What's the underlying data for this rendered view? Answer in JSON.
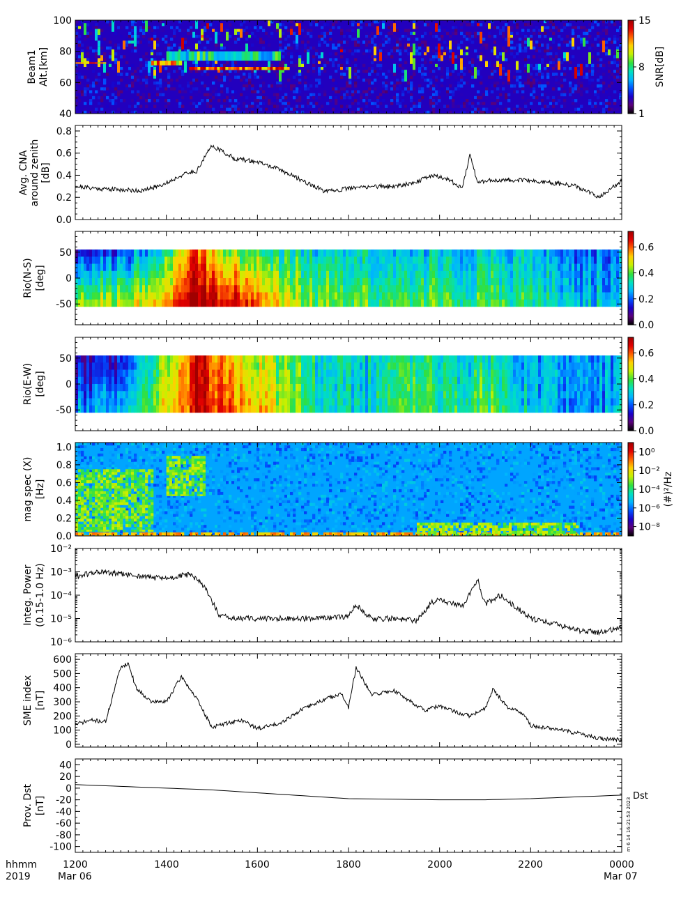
{
  "footer": {
    "row1": [
      "hhmm",
      "1200",
      "1400",
      "1600",
      "1800",
      "2000",
      "2200",
      "0000"
    ],
    "row2": [
      "2019",
      "Mar 06",
      "Mar 07"
    ],
    "stamp": "m  6 14 16:21:53 2023"
  },
  "x_axis": {
    "range": [
      "1200",
      "0000"
    ],
    "tick_labels": [
      "1200",
      "1400",
      "1600",
      "1800",
      "2000",
      "2200",
      "0000"
    ]
  },
  "colorscale": [
    "#000000",
    "#5a007a",
    "#1a00c8",
    "#0050ff",
    "#00b4ff",
    "#00e0c0",
    "#30e040",
    "#c8f000",
    "#ffd000",
    "#ff6000",
    "#e00000",
    "#a00000"
  ],
  "chart_data": [
    {
      "type": "heatmap",
      "ylabel": [
        "Beam1",
        "Alt.[km]"
      ],
      "ylim": [
        40,
        100
      ],
      "yticks": [
        "40",
        "60",
        "80",
        "100"
      ],
      "colorbar": {
        "label": "SNR[dB]",
        "ticks": [
          "1",
          "8",
          "15"
        ],
        "range": [
          1,
          15
        ]
      },
      "features": [
        {
          "what": "echo layer",
          "time": [
            "1430",
            "1640"
          ],
          "altitude_km": [
            68,
            70
          ],
          "snr_db": 15
        },
        {
          "what": "echo layer",
          "time": [
            "1340",
            "1420"
          ],
          "altitude_km": [
            71,
            74
          ],
          "snr_db": 14
        },
        {
          "what": "echo layer",
          "time": [
            "1200",
            "1240"
          ],
          "altitude_km": [
            72,
            73
          ],
          "snr_db": 14
        },
        {
          "what": "echo layer",
          "time": [
            "1400",
            "1630"
          ],
          "altitude_km": [
            74,
            80
          ],
          "snr_db": 10
        }
      ]
    },
    {
      "type": "line",
      "ylabel": [
        "Avg. CNA",
        "around zenith",
        "[dB]"
      ],
      "ylim": [
        0,
        0.85
      ],
      "yticks": [
        "0.0",
        "0.2",
        "0.4",
        "0.6",
        "0.8"
      ],
      "series": [
        {
          "x": [
            "1200",
            "1230",
            "1300",
            "1330",
            "1400",
            "1420",
            "1440",
            "1500",
            "1530",
            "1600",
            "1630",
            "1700",
            "1730",
            "1800",
            "1830",
            "1900",
            "1930",
            "1950",
            "2010",
            "2030",
            "2040",
            "2050",
            "2100",
            "2130",
            "2200",
            "2230",
            "2300",
            "2330",
            "0000"
          ],
          "values": [
            0.3,
            0.28,
            0.27,
            0.26,
            0.33,
            0.4,
            0.44,
            0.67,
            0.55,
            0.52,
            0.45,
            0.35,
            0.25,
            0.28,
            0.3,
            0.3,
            0.34,
            0.4,
            0.37,
            0.28,
            0.6,
            0.33,
            0.35,
            0.36,
            0.35,
            0.33,
            0.3,
            0.2,
            0.35
          ]
        }
      ]
    },
    {
      "type": "heatmap",
      "ylabel": [
        "Rio(N-S)",
        "[deg]"
      ],
      "ylim": [
        -90,
        90
      ],
      "yticks": [
        "-50",
        "0",
        "50"
      ],
      "colorbar": {
        "ticks": [
          "0.0",
          "0.2",
          "0.4",
          "0.6"
        ],
        "range": [
          0,
          0.72
        ]
      },
      "data_extent_deg": [
        -55,
        55
      ],
      "activity": [
        {
          "time": "1200",
          "south": 0.45,
          "north": 0.15
        },
        {
          "time": "1300",
          "south": 0.45,
          "north": 0.2
        },
        {
          "time": "1340",
          "south": 0.52,
          "north": 0.28
        },
        {
          "time": "1420",
          "south": 0.6,
          "north": 0.45
        },
        {
          "time": "1440",
          "south": 0.72,
          "north": 0.65
        },
        {
          "time": "1500",
          "south": 0.7,
          "north": 0.5
        },
        {
          "time": "1540",
          "south": 0.65,
          "north": 0.4
        },
        {
          "time": "1630",
          "south": 0.5,
          "north": 0.35
        },
        {
          "time": "1730",
          "south": 0.4,
          "north": 0.3
        },
        {
          "time": "1830",
          "south": 0.4,
          "north": 0.3
        },
        {
          "time": "1930",
          "south": 0.4,
          "north": 0.3
        },
        {
          "time": "2030",
          "south": 0.35,
          "north": 0.25
        },
        {
          "time": "2100",
          "south": 0.4,
          "north": 0.3
        },
        {
          "time": "2200",
          "south": 0.35,
          "north": 0.28
        },
        {
          "time": "2300",
          "south": 0.28,
          "north": 0.2
        },
        {
          "time": "0000",
          "south": 0.3,
          "north": 0.25
        }
      ]
    },
    {
      "type": "heatmap",
      "ylabel": [
        "Rio(E-W)",
        "[deg]"
      ],
      "ylim": [
        -90,
        90
      ],
      "yticks": [
        "-50",
        "0",
        "50"
      ],
      "colorbar": {
        "ticks": [
          "0.0",
          "0.2",
          "0.4",
          "0.6"
        ],
        "range": [
          0,
          0.72
        ]
      },
      "data_extent_deg": [
        -55,
        55
      ],
      "activity": [
        {
          "time": "1200",
          "south": 0.22,
          "north": 0.1
        },
        {
          "time": "1300",
          "south": 0.28,
          "north": 0.15
        },
        {
          "time": "1340",
          "south": 0.42,
          "north": 0.35
        },
        {
          "time": "1420",
          "south": 0.55,
          "north": 0.5
        },
        {
          "time": "1440",
          "south": 0.72,
          "north": 0.72
        },
        {
          "time": "1500",
          "south": 0.65,
          "north": 0.6
        },
        {
          "time": "1540",
          "south": 0.58,
          "north": 0.5
        },
        {
          "time": "1630",
          "south": 0.45,
          "north": 0.4
        },
        {
          "time": "1730",
          "south": 0.32,
          "north": 0.3
        },
        {
          "time": "1830",
          "south": 0.3,
          "north": 0.3
        },
        {
          "time": "1930",
          "south": 0.38,
          "north": 0.35
        },
        {
          "time": "2030",
          "south": 0.34,
          "north": 0.3
        },
        {
          "time": "2100",
          "south": 0.42,
          "north": 0.35
        },
        {
          "time": "2200",
          "south": 0.28,
          "north": 0.25
        },
        {
          "time": "2300",
          "south": 0.2,
          "north": 0.22
        },
        {
          "time": "0000",
          "south": 0.28,
          "north": 0.25
        }
      ]
    },
    {
      "type": "heatmap",
      "ylabel": [
        "mag spec (X)",
        "[Hz]"
      ],
      "ylim": [
        0,
        1.05
      ],
      "yticks": [
        "0.0",
        "0.2",
        "0.4",
        "0.6",
        "0.8",
        "1.0"
      ],
      "colorbar": {
        "label": "(#)²/Hz",
        "ticks": [
          "10⁰",
          "10⁻²",
          "10⁻⁴",
          "10⁻⁶",
          "10⁻⁸"
        ],
        "range_log10": [
          -9,
          1
        ]
      },
      "background_log10": -5.5,
      "features": [
        {
          "what": "Pc1 band",
          "time": [
            "1200",
            "1340"
          ],
          "freq_hz": [
            0.05,
            0.75
          ],
          "log10_power": -3.2
        },
        {
          "what": "Pc1 band",
          "time": [
            "1400",
            "1450"
          ],
          "freq_hz": [
            0.45,
            0.9
          ],
          "log10_power": -3.2
        },
        {
          "what": "low-frequency power",
          "time": [
            "1200",
            "0000"
          ],
          "freq_hz": [
            0,
            0.04
          ],
          "log10_power": -1.5
        },
        {
          "what": "low-frequency enhancement",
          "time": [
            "1930",
            "2300"
          ],
          "freq_hz": [
            0,
            0.15
          ],
          "log10_power": -3
        }
      ]
    },
    {
      "type": "line",
      "ylabel": [
        "Integ. Power",
        "(0.15-1.0 Hz)"
      ],
      "ylim_log10": [
        -6,
        -2
      ],
      "yticks": [
        "10⁻²",
        "10⁻³",
        "10⁻⁴",
        "10⁻⁵",
        "10⁻⁶"
      ],
      "series": [
        {
          "x": [
            "1200",
            "1230",
            "1300",
            "1330",
            "1400",
            "1430",
            "1450",
            "1510",
            "1530",
            "1600",
            "1700",
            "1730",
            "1800",
            "1810",
            "1830",
            "1900",
            "1930",
            "1950",
            "2000",
            "2030",
            "2050",
            "2100",
            "2120",
            "2140",
            "2200",
            "2230",
            "2300",
            "2330",
            "0000"
          ],
          "values_log10": [
            -3.2,
            -3.0,
            -3.1,
            -3.2,
            -3.3,
            -3.1,
            -3.6,
            -4.9,
            -5.0,
            -5.0,
            -5.0,
            -5.0,
            -4.9,
            -4.4,
            -5.0,
            -5.0,
            -5.1,
            -4.3,
            -4.2,
            -4.5,
            -3.3,
            -4.4,
            -4.0,
            -4.5,
            -5.0,
            -5.2,
            -5.5,
            -5.6,
            -5.4
          ]
        }
      ]
    },
    {
      "type": "line",
      "ylabel": [
        "SME index",
        "[nT]"
      ],
      "ylim": [
        -20,
        640
      ],
      "yticks": [
        "0",
        "100",
        "200",
        "300",
        "400",
        "500",
        "600"
      ],
      "series": [
        {
          "x": [
            "1200",
            "1220",
            "1240",
            "1300",
            "1310",
            "1320",
            "1340",
            "1400",
            "1420",
            "1440",
            "1500",
            "1520",
            "1540",
            "1600",
            "1630",
            "1700",
            "1730",
            "1750",
            "1800",
            "1810",
            "1830",
            "1900",
            "1920",
            "1940",
            "2000",
            "2020",
            "2040",
            "2100",
            "2110",
            "2130",
            "2150",
            "2200",
            "2230",
            "2300",
            "2330",
            "0000"
          ],
          "values": [
            140,
            170,
            160,
            550,
            570,
            400,
            300,
            300,
            480,
            320,
            120,
            150,
            170,
            110,
            150,
            250,
            320,
            360,
            260,
            540,
            350,
            380,
            310,
            240,
            270,
            230,
            200,
            250,
            390,
            260,
            220,
            130,
            110,
            80,
            40,
            30
          ]
        }
      ]
    },
    {
      "type": "line",
      "ylabel": [
        "Prov. Dst",
        "[nT]"
      ],
      "ylim": [
        -110,
        50
      ],
      "yticks": [
        "40",
        "20",
        "0",
        "-20",
        "-40",
        "-60",
        "-80",
        "-100"
      ],
      "series": [
        {
          "name": "Dst",
          "x": [
            "1200",
            "1300",
            "1400",
            "1500",
            "1600",
            "1700",
            "1800",
            "1900",
            "2000",
            "2100",
            "2200",
            "2300",
            "0000"
          ],
          "values": [
            6,
            3,
            0,
            -3,
            -8,
            -13,
            -18,
            -19,
            -20,
            -20,
            -18,
            -15,
            -12
          ]
        }
      ]
    }
  ]
}
